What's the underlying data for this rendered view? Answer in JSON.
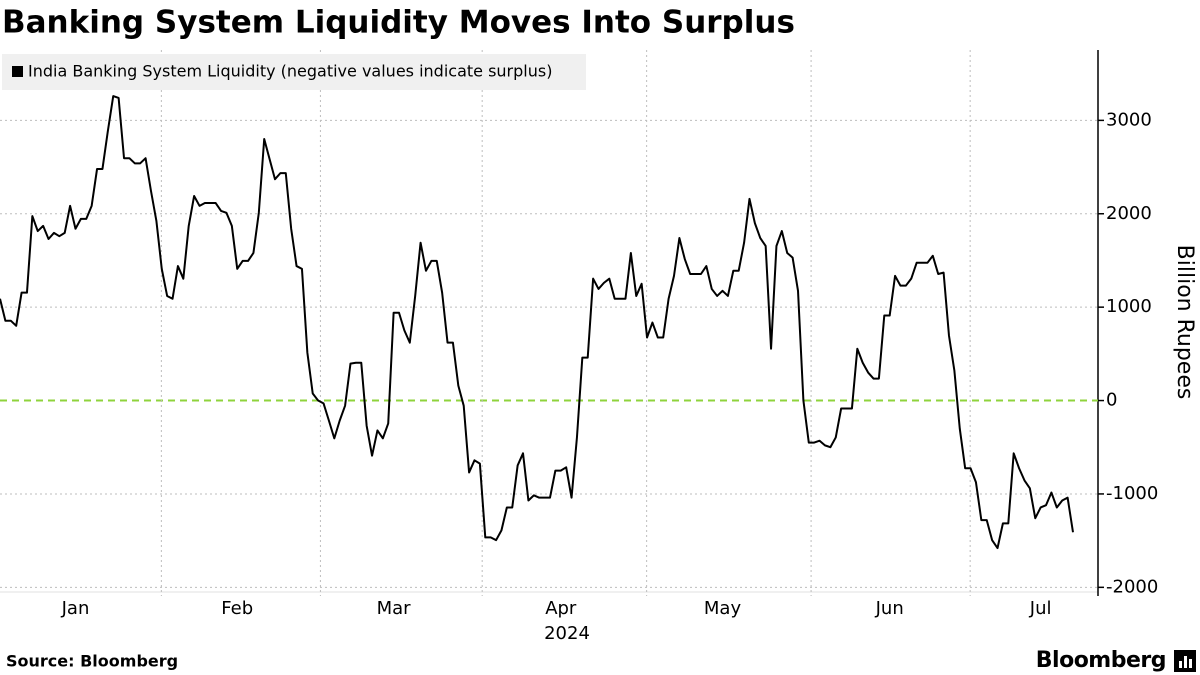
{
  "chart_data": {
    "type": "line",
    "title": "Banking System Liquidity Moves Into Surplus",
    "ylabel": "Billion Rupees",
    "xlabel": "2024",
    "source": "Source: Bloomberg",
    "brand": "Bloomberg",
    "categories": [
      null,
      null,
      null,
      null,
      null,
      null,
      null,
      null,
      null,
      null,
      null,
      null,
      null,
      null,
      "Jan",
      null,
      null,
      null,
      null,
      null,
      null,
      null,
      null,
      null,
      null,
      null,
      null,
      null,
      null,
      null,
      null,
      null,
      null,
      null,
      null,
      null,
      null,
      null,
      null,
      null,
      null,
      null,
      null,
      null,
      "Feb",
      null,
      null,
      null,
      null,
      null,
      null,
      null,
      null,
      null,
      null,
      null,
      null,
      null,
      null,
      null,
      null,
      null,
      null,
      null,
      null,
      null,
      null,
      null,
      null,
      null,
      null,
      null,
      null,
      "Mar",
      null,
      null,
      null,
      null,
      null,
      null,
      null,
      null,
      null,
      null,
      null,
      null,
      null,
      null,
      null,
      null,
      null,
      null,
      null,
      null,
      null,
      null,
      null,
      null,
      null,
      null,
      null,
      null,
      null,
      null,
      "Apr",
      null,
      null,
      null,
      null,
      null,
      null,
      null,
      null,
      null,
      null,
      null,
      null,
      null,
      null,
      null,
      null,
      null,
      null,
      null,
      null,
      null,
      null,
      null,
      null,
      null,
      null,
      null,
      null,
      null,
      "May",
      null,
      null,
      null,
      null,
      null,
      null,
      null,
      null,
      null,
      null,
      null,
      null,
      null,
      null,
      null,
      null,
      null,
      null,
      null,
      null,
      null,
      null,
      null,
      null,
      null,
      null,
      null,
      null,
      null,
      null,
      "Jun",
      null,
      null,
      null,
      null,
      null,
      null,
      null,
      null,
      null,
      null,
      null,
      null,
      null,
      null,
      null,
      null,
      null,
      null,
      null,
      null,
      null,
      null,
      null,
      null,
      null,
      null,
      null,
      "Jul",
      null,
      null,
      null,
      null,
      null,
      null
    ],
    "series": [
      {
        "name": "India Banking System Liquidity (negative values indicate surplus)",
        "color": "#000000",
        "values": [
          1090,
          855,
          855,
          800,
          1155,
          1155,
          1975,
          1815,
          1870,
          1730,
          1795,
          1760,
          1795,
          2085,
          1840,
          1945,
          1945,
          2085,
          2480,
          2480,
          2885,
          3260,
          3240,
          2595,
          2595,
          2540,
          2540,
          2595,
          2245,
          1925,
          1410,
          1120,
          1090,
          1440,
          1305,
          1870,
          2190,
          2085,
          2115,
          2115,
          2115,
          2030,
          2010,
          1870,
          1410,
          1495,
          1495,
          1580,
          2010,
          2800,
          2585,
          2370,
          2435,
          2435,
          1840,
          1440,
          1410,
          515,
          75,
          0,
          -30,
          -215,
          -405,
          -215,
          -55,
          395,
          405,
          405,
          -270,
          -590,
          -320,
          -405,
          -245,
          940,
          940,
          750,
          620,
          1120,
          1690,
          1390,
          1495,
          1495,
          1155,
          620,
          620,
          160,
          -55,
          -770,
          -640,
          -675,
          -1465,
          -1465,
          -1495,
          -1390,
          -1145,
          -1145,
          -695,
          -565,
          -1070,
          -1015,
          -1040,
          -1040,
          -1040,
          -750,
          -750,
          -715,
          -1040,
          -395,
          460,
          460,
          1305,
          1195,
          1260,
          1305,
          1090,
          1090,
          1090,
          1580,
          1120,
          1250,
          675,
          835,
          675,
          675,
          1090,
          1335,
          1740,
          1515,
          1355,
          1355,
          1355,
          1440,
          1195,
          1120,
          1175,
          1120,
          1390,
          1390,
          1690,
          2160,
          1900,
          1740,
          1655,
          555,
          1655,
          1815,
          1580,
          1530,
          1175,
          0,
          -450,
          -450,
          -430,
          -480,
          -500,
          -395,
          -85,
          -85,
          -85,
          555,
          405,
          300,
          235,
          235,
          910,
          910,
          1335,
          1230,
          1230,
          1305,
          1475,
          1475,
          1475,
          1550,
          1355,
          1370,
          695,
          320,
          -300,
          -725,
          -725,
          -875,
          -1280,
          -1280,
          -1495,
          -1580,
          -1315,
          -1315,
          -565,
          -725,
          -855,
          -940,
          -1260,
          -1145,
          -1120,
          -985,
          -1145,
          -1070,
          -1040,
          -1410
        ]
      }
    ],
    "ylim": [
      -2050,
      3700
    ],
    "yticks": [
      3000,
      2000,
      1000,
      0,
      -1000,
      -2000
    ],
    "grid": true,
    "zero_line_color": "#8fd33c",
    "legend": "upper left"
  }
}
